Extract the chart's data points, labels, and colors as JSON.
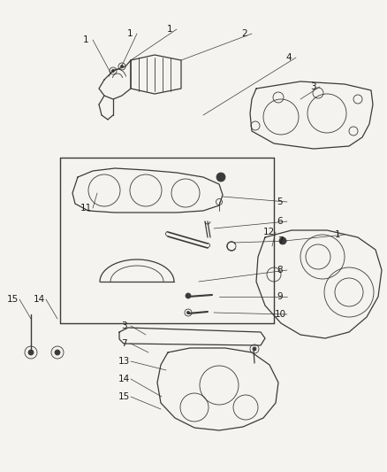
{
  "bg_color": "#f5f3ef",
  "line_color": "#3a3a3a",
  "text_color": "#1a1a1a",
  "figsize": [
    4.39,
    5.33
  ],
  "dpi": 100,
  "lw_main": 0.9,
  "lw_thin": 0.6,
  "lw_leader": 0.5
}
